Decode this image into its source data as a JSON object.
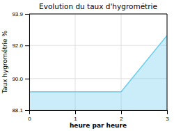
{
  "chart_data": {
    "type": "area",
    "title": "Evolution du taux d'hygrométrie",
    "x_label": "heure par heure",
    "y_label": "Taux hygrométrie %",
    "x": [
      0,
      2,
      3
    ],
    "values": [
      89.2,
      89.2,
      92.6
    ],
    "color": "#66ccee",
    "xlim": [
      0,
      3
    ],
    "xticks": [
      0,
      1,
      2,
      3
    ],
    "ylim": [
      88.1,
      93.9
    ],
    "yticks": [
      88.1,
      {
        "value": 90,
        "label": "90.0"
      },
      {
        "value": 92,
        "label": "92.0"
      },
      93.9
    ],
    "grid": true
  }
}
